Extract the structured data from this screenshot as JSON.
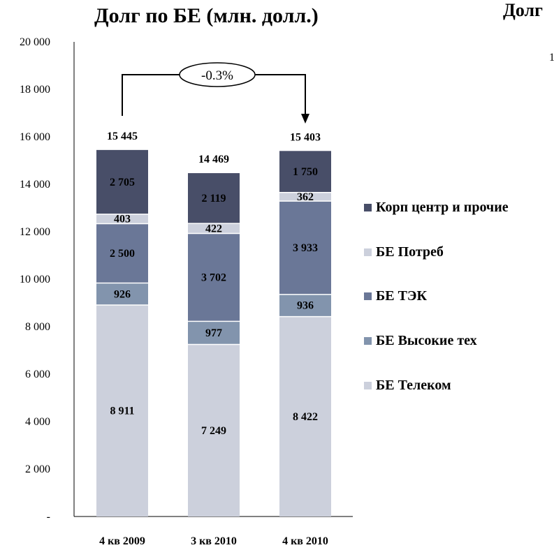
{
  "chart_data": {
    "type": "bar",
    "stacked": true,
    "title": "Долг по БЕ (млн. долл.)",
    "categories": [
      "4 кв 2009",
      "3 кв 2010",
      "4 кв 2010"
    ],
    "ylim": [
      0,
      20000
    ],
    "yticks": [
      {
        "value": 0,
        "label": "-"
      },
      {
        "value": 2000,
        "label": "2 000"
      },
      {
        "value": 4000,
        "label": "4 000"
      },
      {
        "value": 6000,
        "label": "6 000"
      },
      {
        "value": 8000,
        "label": "8 000"
      },
      {
        "value": 10000,
        "label": "10 000"
      },
      {
        "value": 12000,
        "label": "12 000"
      },
      {
        "value": 14000,
        "label": "14 000"
      },
      {
        "value": 16000,
        "label": "16 000"
      },
      {
        "value": 18000,
        "label": "18 000"
      },
      {
        "value": 20000,
        "label": "20 000"
      }
    ],
    "series": [
      {
        "name": "БЕ Телеком",
        "color": "#ccd0dc",
        "values": [
          8911,
          7249,
          8422
        ],
        "labels": [
          "8 911",
          "7 249",
          "8 422"
        ]
      },
      {
        "name": "БЕ Высокие тех",
        "color": "#8294ad",
        "values": [
          926,
          977,
          936
        ],
        "labels": [
          "926",
          "977",
          "936"
        ]
      },
      {
        "name": "БЕ ТЭК",
        "color": "#6a7797",
        "values": [
          2500,
          3702,
          3933
        ],
        "labels": [
          "2 500",
          "3 702",
          "3 933"
        ]
      },
      {
        "name": "БЕ Потреб",
        "color": "#ccd0dc",
        "values": [
          403,
          422,
          362
        ],
        "labels": [
          "403",
          "422",
          "362"
        ]
      },
      {
        "name": "Корп центр и прочие",
        "color": "#484e68",
        "values": [
          2705,
          2119,
          1750
        ],
        "labels": [
          "2 705",
          "2 119",
          "1 750"
        ]
      }
    ],
    "totals": [
      "15 445",
      "14 469",
      "15 403"
    ],
    "change_annotation": "-0.3%",
    "legend_position": "right",
    "grid": false
  },
  "cropped_second_chart": {
    "title_fragment": "Долг",
    "axis_fragment": "1"
  }
}
